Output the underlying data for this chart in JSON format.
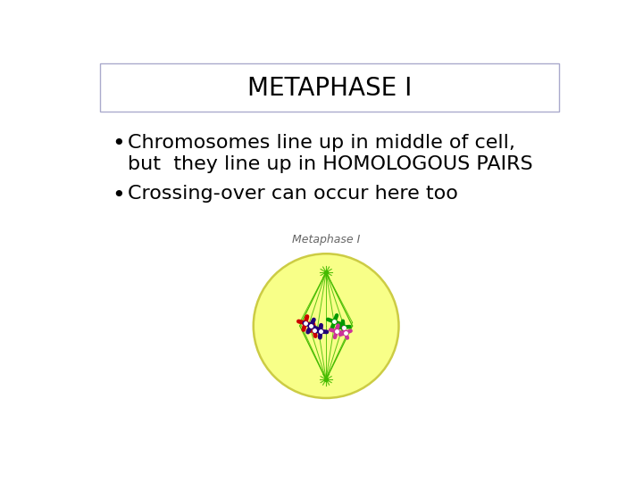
{
  "title": "METAPHASE I",
  "title_fontsize": 20,
  "title_box_color": "#ffffff",
  "title_box_edge": "#aaaacc",
  "background_color": "#ffffff",
  "bullet1_line1": "Chromosomes line up in middle of cell,",
  "bullet1_line2": "but  they line up in HOMOLOGOUS PAIRS",
  "bullet2": "Crossing-over can occur here too",
  "bullet_fontsize": 16,
  "image_label": "Metaphase I",
  "image_label_fontsize": 9,
  "cell_fill": "#f8ff88",
  "cell_edge": "#cccc44",
  "spindle_color": "#44bb00",
  "text_color": "#000000"
}
